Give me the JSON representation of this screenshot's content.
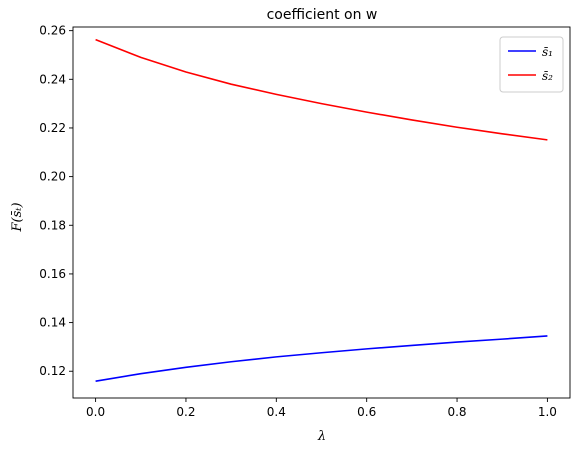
{
  "chart_data": {
    "type": "line",
    "title": "coefficient on w",
    "xlabel": "λ",
    "ylabel": "F(s̄ₜ)",
    "xlim": [
      -0.05,
      1.05
    ],
    "ylim": [
      0.109,
      0.2615
    ],
    "xticks": [
      0.0,
      0.2,
      0.4,
      0.6,
      0.8,
      1.0
    ],
    "xtick_labels": [
      "0.0",
      "0.2",
      "0.4",
      "0.6",
      "0.8",
      "1.0"
    ],
    "yticks": [
      0.12,
      0.14,
      0.16,
      0.18,
      0.2,
      0.22,
      0.24,
      0.26
    ],
    "ytick_labels": [
      "0.12",
      "0.14",
      "0.16",
      "0.18",
      "0.20",
      "0.22",
      "0.24",
      "0.26"
    ],
    "grid": false,
    "legend_position": "top-right",
    "x": [
      0.0,
      0.1,
      0.2,
      0.3,
      0.4,
      0.5,
      0.6,
      0.7,
      0.8,
      0.9,
      1.0
    ],
    "series": [
      {
        "name": "s̄₁",
        "color": "#0000ff",
        "values": [
          0.1159,
          0.119,
          0.1216,
          0.1239,
          0.1259,
          0.1276,
          0.1292,
          0.1306,
          0.132,
          0.1332,
          0.1345
        ]
      },
      {
        "name": "s̄₂",
        "color": "#ff0000",
        "values": [
          0.2563,
          0.249,
          0.243,
          0.238,
          0.2338,
          0.23,
          0.2265,
          0.2233,
          0.2203,
          0.2176,
          0.2151
        ]
      }
    ]
  }
}
